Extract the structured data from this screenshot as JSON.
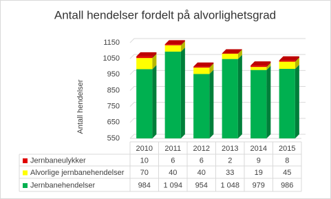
{
  "chart_data": {
    "type": "bar3d_stacked",
    "title": "Antall hendelser fordelt på alvorlighetsgrad",
    "y_label": "Antall hendelser",
    "categories": [
      "2010",
      "2011",
      "2012",
      "2013",
      "2014",
      "2015"
    ],
    "series": [
      {
        "name": "Jernbaneulykker",
        "color": "#e00000",
        "values": [
          10,
          6,
          6,
          2,
          9,
          8
        ]
      },
      {
        "name": "Alvorlige jernbanehendelser",
        "color": "#ffff00",
        "values": [
          70,
          40,
          40,
          33,
          19,
          45
        ]
      },
      {
        "name": "Jernbanehendelser",
        "color": "#00b050",
        "values": [
          984,
          1094,
          954,
          1048,
          979,
          986
        ],
        "value_labels": [
          "984",
          "1 094",
          "954",
          "1 048",
          "979",
          "986"
        ]
      }
    ],
    "ylim": [
      550,
      1150
    ],
    "yticks": [
      550,
      650,
      750,
      850,
      950,
      1050,
      1150
    ],
    "grid": true
  }
}
